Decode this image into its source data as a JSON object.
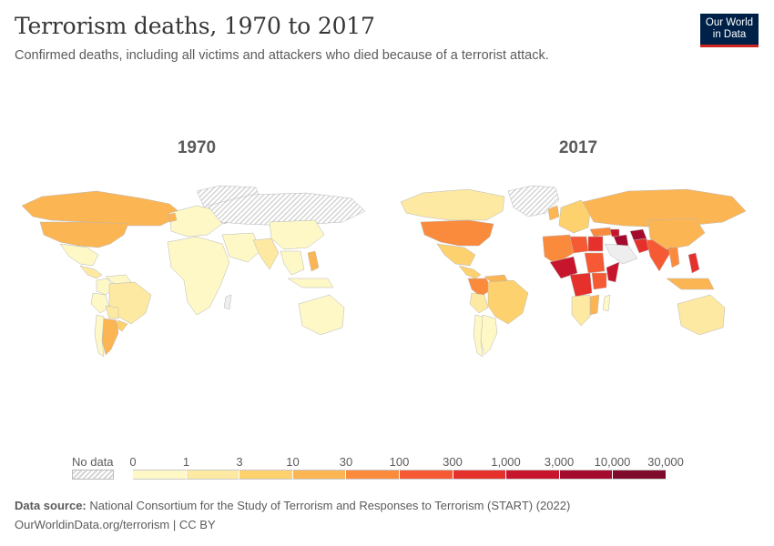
{
  "header": {
    "title": "Terrorism deaths, 1970 to 2017",
    "subtitle": "Confirmed deaths, including all victims and attackers who died because of a terrorist attack.",
    "logo_line1": "Our World",
    "logo_line2": "in Data"
  },
  "maps": [
    {
      "year_label": "1970",
      "regions": {
        "north_america": "10-30",
        "canada": "10-30",
        "greenland": "no data",
        "mexico": "0-1",
        "central_america": "1-3",
        "colombia": "0-1",
        "venezuela": "0-1",
        "brazil": "1-3",
        "peru": "0-1",
        "bolivia": "1-3",
        "argentina": "10-30",
        "chile": "0-1",
        "uruguay": "3-10",
        "europe": "0-1",
        "northern_ireland": "10-30",
        "russia": "no data",
        "africa": "0-1",
        "middle_east": "0-1",
        "india": "1-3",
        "china": "0-1",
        "southeast_asia": "0-1",
        "philippines": "10-30",
        "indonesia": "0-1",
        "australia": "0-1"
      }
    },
    {
      "year_label": "2017",
      "regions": {
        "usa": "30-100",
        "canada": "1-3",
        "greenland": "no data",
        "mexico": "3-10",
        "central_america": "3-10",
        "colombia": "30-100",
        "venezuela": "10-30",
        "brazil": "3-10",
        "peru": "1-3",
        "argentina": "0-1",
        "chile": "0-1",
        "uk": "10-30",
        "europe": "3-10",
        "russia": "10-30",
        "turkey": "30-100",
        "syria": "1,000-3,000",
        "iraq": "3,000-10,000",
        "afghanistan": "3,000-10,000",
        "pakistan": "300-1,000",
        "india": "100-300",
        "china": "10-30",
        "myanmar": "30-100",
        "philippines": "300-1,000",
        "indonesia": "10-30",
        "australia": "1-3",
        "north_africa": "30-100",
        "libya": "100-300",
        "egypt": "300-1,000",
        "nigeria": "1,000-3,000",
        "somalia": "1,000-3,000",
        "sudan": "100-300",
        "drc": "300-1,000",
        "kenya": "100-300",
        "southern_africa": "1-3",
        "mozambique": "10-30",
        "madagascar": "0-1"
      }
    }
  ],
  "legend": {
    "no_data_label": "No data",
    "tick_labels": [
      "0",
      "1",
      "3",
      "10",
      "30",
      "100",
      "300",
      "1,000",
      "3,000",
      "10,000",
      "30,000"
    ],
    "bins": [
      "#fef8c6",
      "#fde9a1",
      "#fdd16d",
      "#fcb553",
      "#fb8b3c",
      "#f65a34",
      "#e5302b",
      "#c7152d",
      "#a30a2e",
      "#7e0b2c"
    ],
    "no_data_color": "#e6e6e6"
  },
  "footer": {
    "source_label": "Data source:",
    "source_text": "National Consortium for the Study of Terrorism and Responses to Terrorism (START) (2022)",
    "url": "OurWorldinData.org/terrorism",
    "license": "CC BY"
  }
}
